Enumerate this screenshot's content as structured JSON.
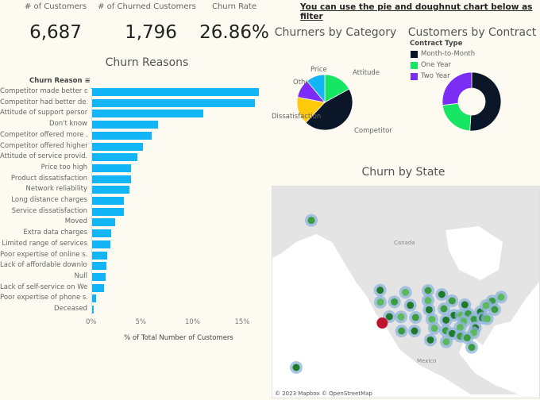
{
  "kpis": [
    {
      "label": "# of Customers",
      "value": "6,687"
    },
    {
      "label": "# of Churned Customers",
      "value": "1,796"
    },
    {
      "label": "Churn Rate",
      "value": "26.86%"
    }
  ],
  "filter_note": "You can use the pie and doughnut chart below as filter",
  "chart_data": [
    {
      "type": "bar",
      "orientation": "horizontal",
      "title": "Churn Reasons",
      "category_header": "Churn Reason",
      "xlabel": "% of Total Number of Customers",
      "xlim": [
        0,
        17
      ],
      "x_ticks": [
        "0%",
        "5%",
        "10%",
        "15%"
      ],
      "color": "#12b5f5",
      "categories": [
        "Competitor made better o..",
        "Competitor had better de..",
        "Attitude of support person",
        "Don't know",
        "Competitor offered more ..",
        "Competitor offered higher..",
        "Attitude of service provid..",
        "Price too high",
        "Product dissatisfaction",
        "Network reliability",
        "Long distance charges",
        "Service dissatisfaction",
        "Moved",
        "Extra data charges",
        "Limited range of services",
        "Poor expertise of online s..",
        "Lack of affordable downlo..",
        "Null",
        "Lack of self-service on We..",
        "Poor expertise of phone s..",
        "Deceased"
      ],
      "values": [
        16.9,
        16.5,
        11.3,
        6.7,
        6.1,
        5.2,
        4.6,
        4.0,
        4.0,
        3.8,
        3.3,
        3.3,
        2.4,
        2.0,
        1.9,
        1.6,
        1.5,
        1.4,
        1.3,
        0.5,
        0.2
      ]
    },
    {
      "type": "pie",
      "title": "Churners by Category",
      "categories": [
        "Attitude",
        "Competitor",
        "Dissatisfaction",
        "Other",
        "Price"
      ],
      "values": [
        17,
        45,
        16,
        11,
        11
      ],
      "colors": [
        "#17e564",
        "#0b1628",
        "#ffca0a",
        "#7b2cf5",
        "#12b5f5"
      ]
    },
    {
      "type": "pie",
      "subtype": "doughnut",
      "title": "Customers by Contract",
      "legend_title": "Contract Type",
      "legend_position": "top-left",
      "categories": [
        "Month-to-Month",
        "One Year",
        "Two Year"
      ],
      "values": [
        51,
        22,
        27
      ],
      "colors": [
        "#0b1628",
        "#17e564",
        "#7b2cf5"
      ]
    }
  ],
  "map": {
    "title": "Churn by State",
    "labels": {
      "canada": "Canada",
      "mexico": "Mexico"
    },
    "attribution": "© 2023 Mapbox © OpenStreetMap",
    "colors": {
      "land": "#e4e4e4",
      "water": "#ffffff",
      "halo": "#8fb4db",
      "dot": "#3a9b3f",
      "highlight": "#c0112f"
    }
  }
}
